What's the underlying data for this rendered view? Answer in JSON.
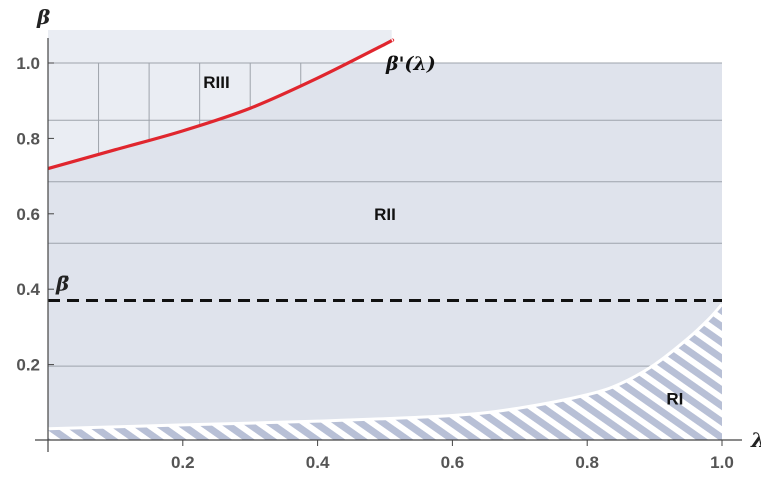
{
  "chart_data": {
    "type": "area",
    "xlabel": "λ",
    "ylabel": "β",
    "xlim": [
      0,
      1
    ],
    "ylim": [
      0,
      1
    ],
    "x_ticks": [
      {
        "value": 0.2,
        "label": "0.2"
      },
      {
        "value": 0.4,
        "label": "0.4"
      },
      {
        "value": 0.6,
        "label": "0.6"
      },
      {
        "value": 0.8,
        "label": "0.8"
      },
      {
        "value": 1.0,
        "label": "1.0"
      }
    ],
    "y_ticks": [
      {
        "value": 0.2,
        "label": "0.2"
      },
      {
        "value": 0.4,
        "label": "0.4"
      },
      {
        "value": 0.6,
        "label": "0.6"
      },
      {
        "value": 0.8,
        "label": "0.8"
      },
      {
        "value": 1.0,
        "label": "1.0"
      }
    ],
    "regions": [
      {
        "label": "RIII",
        "label_at": [
          0.25,
          0.95
        ],
        "fill": "light-gray",
        "hatch": "vertical"
      },
      {
        "label": "RII",
        "label_at": [
          0.5,
          0.6
        ],
        "fill": "gray-blue",
        "hatch": "horizontal"
      },
      {
        "label": "RI",
        "label_at": [
          0.93,
          0.11
        ],
        "fill": "gray-blue",
        "hatch": "diagonal"
      }
    ],
    "beta_prime_curve": {
      "label": "β'(λ)",
      "label_at": [
        0.58,
        1.03
      ],
      "color": "#e0262e",
      "x": [
        0.0,
        0.1,
        0.2,
        0.3,
        0.4,
        0.5,
        0.51
      ],
      "y": [
        0.72,
        0.77,
        0.82,
        0.88,
        0.96,
        1.05,
        1.06
      ]
    },
    "beta_bar_line": {
      "label": "β̄",
      "value": 0.37,
      "style": "dashed",
      "color": "#111111"
    },
    "ri_boundary": {
      "x": [
        0.0,
        0.2,
        0.4,
        0.6,
        0.7,
        0.8,
        0.85,
        0.9,
        0.95,
        0.98,
        1.0
      ],
      "y": [
        0.03,
        0.04,
        0.05,
        0.065,
        0.085,
        0.12,
        0.15,
        0.2,
        0.27,
        0.32,
        0.36
      ]
    },
    "colors": {
      "region_fill": "#dfe3ec",
      "region_iii_fill": "#eaedf3",
      "hatch_fill": "#b8c0d6",
      "grid_line": "#9ea3ab",
      "axis": "#444444"
    }
  }
}
